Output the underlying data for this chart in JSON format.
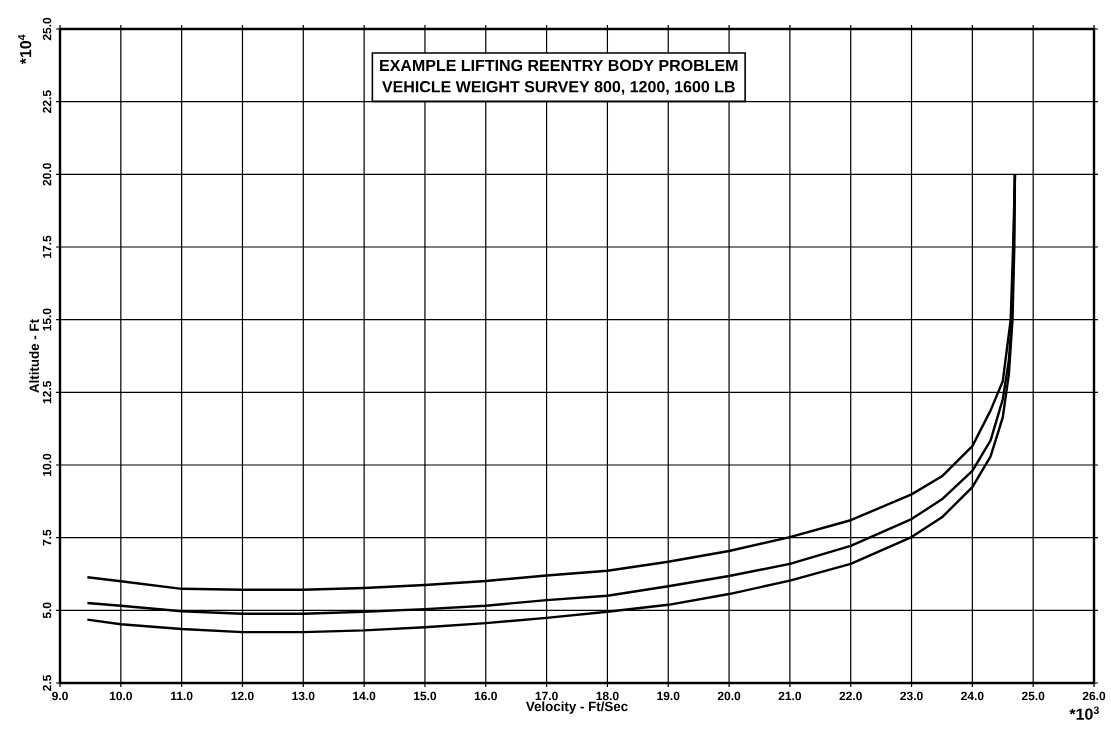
{
  "chart_data": {
    "type": "line",
    "title": "EXAMPLE LIFTING REENTRY BODY PROBLEM",
    "subtitle": "VEHICLE WEIGHT SURVEY  800, 1200, 1600 LB",
    "xlabel": "Velocity - Ft/Sec",
    "ylabel": "Altitude - Ft",
    "annotations": [
      "*10$^{4}$",
      "*10$^{3}$"
    ],
    "xlim": [
      9,
      26
    ],
    "ylim": [
      2.5,
      25
    ],
    "xticks": [
      {
        "value": 9,
        "label": "9.0"
      },
      {
        "value": 10,
        "label": "10.0"
      },
      {
        "value": 11,
        "label": "11.0"
      },
      {
        "value": 12,
        "label": "12.0"
      },
      {
        "value": 13,
        "label": "13.0"
      },
      {
        "value": 14,
        "label": "14.0"
      },
      {
        "value": 15,
        "label": "15.0"
      },
      {
        "value": 16,
        "label": "16.0"
      },
      {
        "value": 17,
        "label": "17.0"
      },
      {
        "value": 18,
        "label": "18.0"
      },
      {
        "value": 19,
        "label": "19.0"
      },
      {
        "value": 20,
        "label": "20.0"
      },
      {
        "value": 21,
        "label": "21.0"
      },
      {
        "value": 22,
        "label": "22.0"
      },
      {
        "value": 23,
        "label": "23.0"
      },
      {
        "value": 24,
        "label": "24.0"
      },
      {
        "value": 25,
        "label": "25.0"
      },
      {
        "value": 26,
        "label": "26.0"
      }
    ],
    "yticks": [
      {
        "value": 2.5,
        "label": "2.5"
      },
      {
        "value": 5,
        "label": "5.0"
      },
      {
        "value": 7.5,
        "label": "7.5"
      },
      {
        "value": 10,
        "label": "10.0"
      },
      {
        "value": 12.5,
        "label": "12.5"
      },
      {
        "value": 15,
        "label": "15.0"
      },
      {
        "value": 17.5,
        "label": "17.5"
      },
      {
        "value": 20,
        "label": "20.0"
      },
      {
        "value": 22.5,
        "label": "22.5"
      },
      {
        "value": 25,
        "label": "25.0"
      }
    ],
    "grid": true,
    "series": [
      {
        "color": "#000000",
        "x": [
          9.45,
          10,
          11,
          12,
          13,
          14,
          15,
          16,
          17,
          18,
          19,
          20,
          21,
          22,
          23,
          23.5,
          24,
          24.3,
          24.5,
          24.63,
          24.67,
          24.7
        ],
        "values": [
          6.14,
          6.0,
          5.74,
          5.71,
          5.71,
          5.77,
          5.87,
          6.01,
          6.2,
          6.36,
          6.67,
          7.04,
          7.52,
          8.1,
          8.99,
          9.61,
          10.65,
          11.88,
          12.88,
          15.0,
          17.5,
          20.0
        ]
      },
      {
        "color": "#000000",
        "x": [
          9.45,
          10,
          11,
          12,
          13,
          14,
          15,
          16,
          17,
          18,
          19,
          20,
          21,
          22,
          23,
          23.5,
          24,
          24.3,
          24.5,
          24.6,
          24.65,
          24.68,
          24.7
        ],
        "values": [
          5.25,
          5.16,
          4.97,
          4.88,
          4.88,
          4.95,
          5.04,
          5.16,
          5.35,
          5.5,
          5.83,
          6.18,
          6.6,
          7.22,
          8.14,
          8.82,
          9.8,
          10.85,
          12.26,
          13.6,
          15.0,
          17.5,
          20.0
        ]
      },
      {
        "color": "#000000",
        "x": [
          9.45,
          10,
          11,
          12,
          13,
          14,
          15,
          16,
          17,
          18,
          19,
          20,
          21,
          22,
          23,
          23.5,
          24,
          24.3,
          24.5,
          24.6,
          24.66,
          24.69,
          24.7
        ],
        "values": [
          4.68,
          4.52,
          4.36,
          4.25,
          4.25,
          4.31,
          4.42,
          4.56,
          4.74,
          4.95,
          5.19,
          5.56,
          6.02,
          6.6,
          7.52,
          8.2,
          9.24,
          10.3,
          11.64,
          13.12,
          15.0,
          17.5,
          20.0
        ]
      }
    ]
  }
}
